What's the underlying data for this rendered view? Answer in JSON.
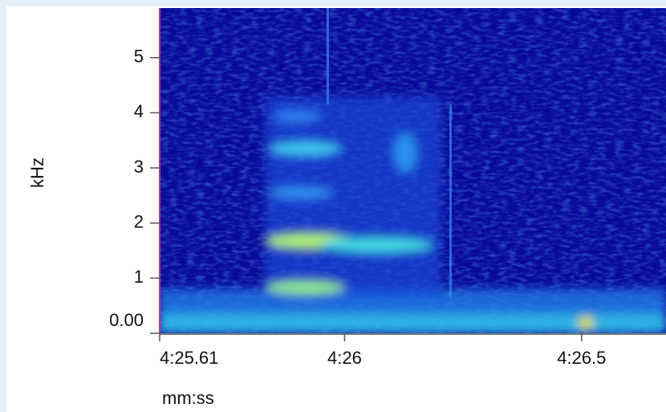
{
  "chart_data": {
    "type": "spectrogram",
    "y_label": "kHz",
    "x_label": "mm:ss",
    "ylim": [
      0,
      5.9
    ],
    "yticks": [
      {
        "value": 0,
        "label": "0.00"
      },
      1,
      2,
      3,
      4,
      5
    ],
    "xlim": [
      265.61,
      266.678
    ],
    "xticks": [
      {
        "value": 265.61,
        "label": "4:25.61"
      },
      {
        "value": 266,
        "label": "4:26"
      },
      {
        "value": 266.5,
        "label": "4:26.5"
      }
    ],
    "limit_label_color": "#2b2bc8"
  }
}
